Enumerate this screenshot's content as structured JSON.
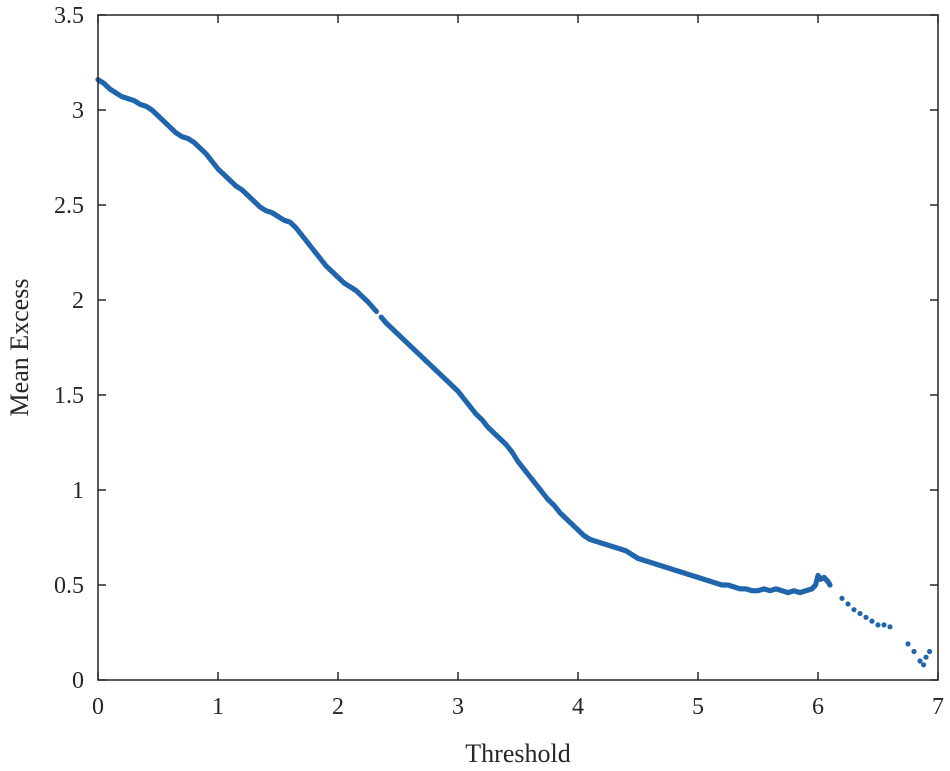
{
  "chart_data": {
    "type": "scatter",
    "title": "",
    "xlabel": "Threshold",
    "ylabel": "Mean Excess",
    "xlim": [
      0,
      7
    ],
    "ylim": [
      0,
      3.5
    ],
    "xticks": [
      "0",
      "1",
      "2",
      "3",
      "4",
      "5",
      "6",
      "7"
    ],
    "yticks": [
      "0",
      "0.5",
      "1",
      "1.5",
      "2",
      "2.5",
      "3",
      "3.5"
    ],
    "grid": false,
    "marker_color": "#2166ac",
    "axis_color": "#262626",
    "series": [
      {
        "x": [
          0.0,
          0.05,
          0.1,
          0.15,
          0.2,
          0.25,
          0.3,
          0.35,
          0.4,
          0.45,
          0.5,
          0.55,
          0.6,
          0.65,
          0.7,
          0.75,
          0.8,
          0.85,
          0.9,
          0.95,
          1.0,
          1.05,
          1.1,
          1.15,
          1.2,
          1.25,
          1.3,
          1.35,
          1.4,
          1.45,
          1.5,
          1.55,
          1.6,
          1.65,
          1.7,
          1.75,
          1.8,
          1.85,
          1.9,
          1.95,
          2.0,
          2.05,
          2.1,
          2.15,
          2.2,
          2.25,
          2.32,
          2.36,
          2.4,
          2.45,
          2.5,
          2.55,
          2.6,
          2.65,
          2.7,
          2.75,
          2.8,
          2.85,
          2.9,
          2.95,
          3.0,
          3.05,
          3.1,
          3.15,
          3.2,
          3.25,
          3.3,
          3.35,
          3.4,
          3.45,
          3.5,
          3.55,
          3.6,
          3.65,
          3.7,
          3.75,
          3.8,
          3.85,
          3.9,
          3.95,
          4.0,
          4.05,
          4.1,
          4.15,
          4.2,
          4.25,
          4.3,
          4.35,
          4.4,
          4.45,
          4.5,
          4.55,
          4.6,
          4.65,
          4.7,
          4.75,
          4.8,
          4.85,
          4.9,
          4.95,
          5.0,
          5.05,
          5.1,
          5.15,
          5.2,
          5.25,
          5.3,
          5.35,
          5.4,
          5.45,
          5.5,
          5.55,
          5.6,
          5.65,
          5.7,
          5.75,
          5.8,
          5.85,
          5.9,
          5.95,
          5.98,
          6.0,
          6.02,
          6.05,
          6.08,
          6.1,
          6.2,
          6.25,
          6.3,
          6.35,
          6.4,
          6.45,
          6.5,
          6.55,
          6.6,
          6.75,
          6.8,
          6.85,
          6.88,
          6.9,
          6.93
        ],
        "y": [
          3.16,
          3.14,
          3.11,
          3.09,
          3.07,
          3.06,
          3.05,
          3.03,
          3.02,
          3.0,
          2.97,
          2.94,
          2.91,
          2.88,
          2.86,
          2.85,
          2.83,
          2.8,
          2.77,
          2.73,
          2.69,
          2.66,
          2.63,
          2.6,
          2.58,
          2.55,
          2.52,
          2.49,
          2.47,
          2.46,
          2.44,
          2.42,
          2.41,
          2.38,
          2.34,
          2.3,
          2.26,
          2.22,
          2.18,
          2.15,
          2.12,
          2.09,
          2.07,
          2.05,
          2.02,
          1.99,
          1.94,
          1.91,
          1.88,
          1.85,
          1.82,
          1.79,
          1.76,
          1.73,
          1.7,
          1.67,
          1.64,
          1.61,
          1.58,
          1.55,
          1.52,
          1.48,
          1.44,
          1.4,
          1.37,
          1.33,
          1.3,
          1.27,
          1.24,
          1.2,
          1.15,
          1.11,
          1.07,
          1.03,
          0.99,
          0.95,
          0.92,
          0.88,
          0.85,
          0.82,
          0.79,
          0.76,
          0.74,
          0.73,
          0.72,
          0.71,
          0.7,
          0.69,
          0.68,
          0.66,
          0.64,
          0.63,
          0.62,
          0.61,
          0.6,
          0.59,
          0.58,
          0.57,
          0.56,
          0.55,
          0.54,
          0.53,
          0.52,
          0.51,
          0.5,
          0.5,
          0.49,
          0.48,
          0.48,
          0.47,
          0.47,
          0.48,
          0.47,
          0.48,
          0.47,
          0.46,
          0.47,
          0.46,
          0.47,
          0.48,
          0.5,
          0.55,
          0.53,
          0.54,
          0.52,
          0.5,
          0.43,
          0.4,
          0.37,
          0.35,
          0.33,
          0.31,
          0.29,
          0.29,
          0.28,
          0.19,
          0.15,
          0.1,
          0.08,
          0.12,
          0.15
        ]
      }
    ]
  }
}
